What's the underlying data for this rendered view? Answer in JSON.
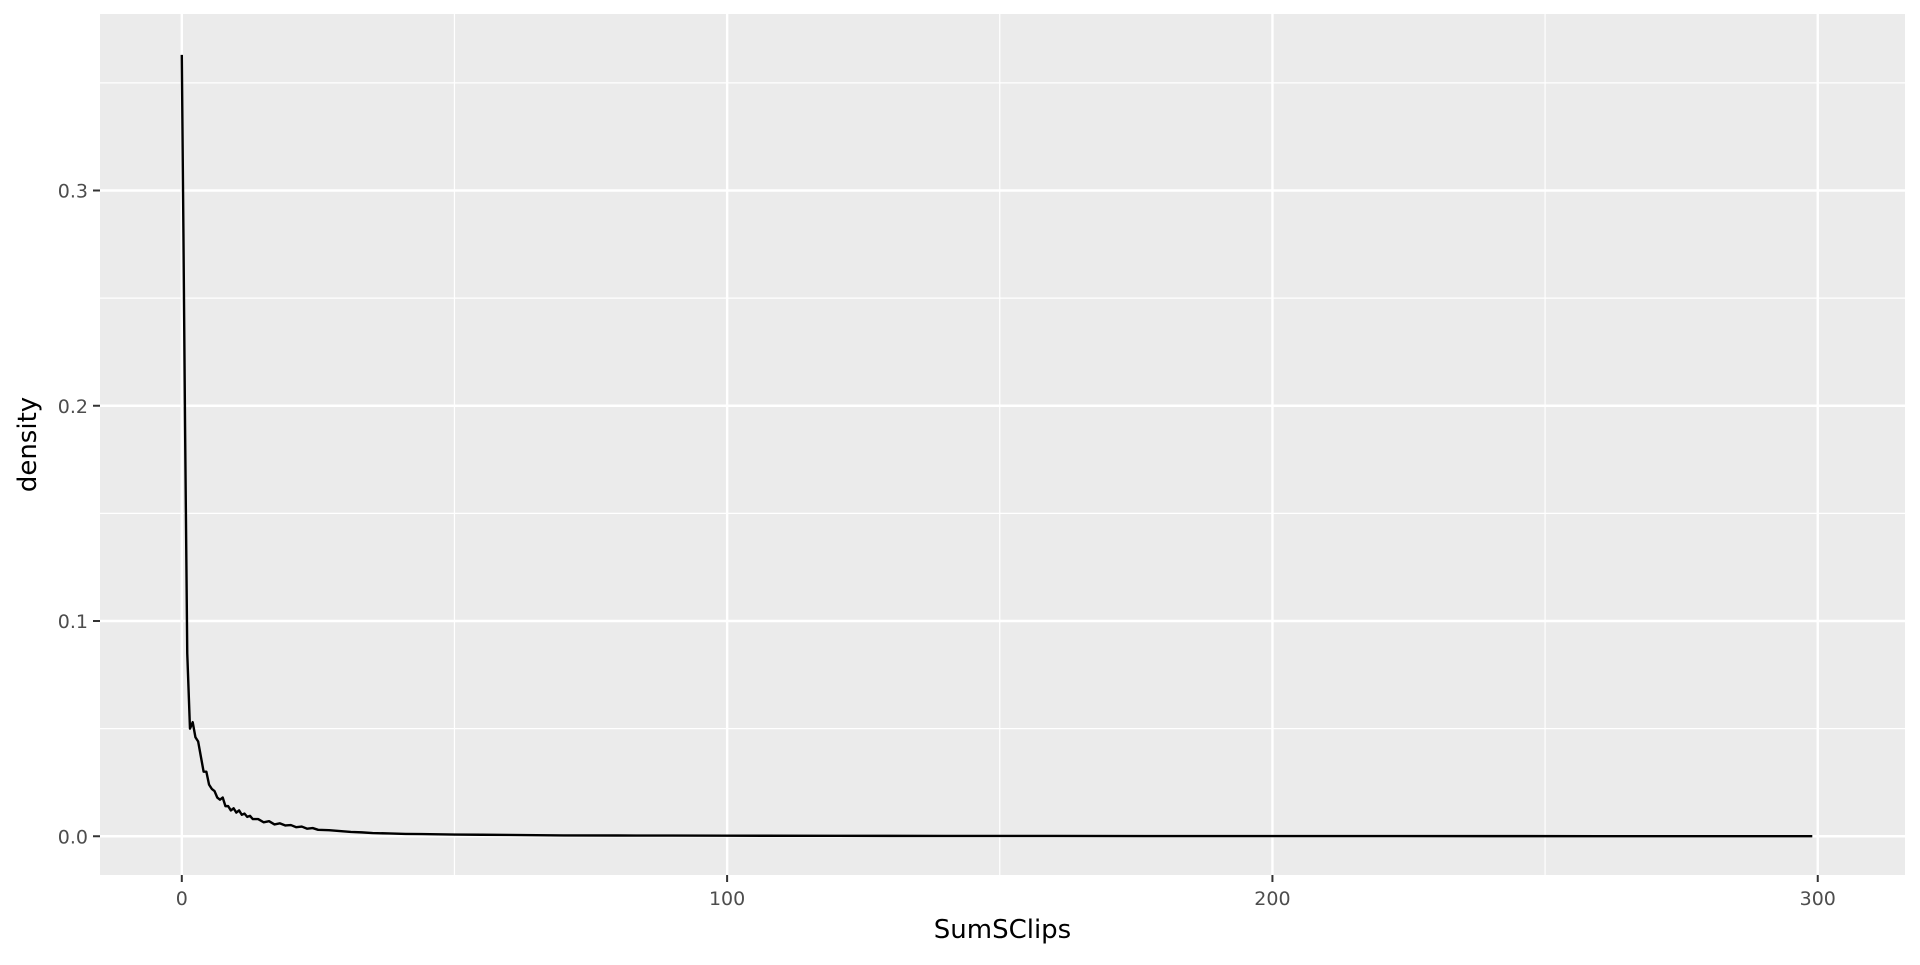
{
  "chart_data": {
    "type": "line",
    "title": "",
    "xlabel": "SumSClips",
    "ylabel": "density",
    "xlim": [
      -15,
      316
    ],
    "ylim": [
      -0.018,
      0.382
    ],
    "x_ticks": [
      0,
      100,
      200,
      300
    ],
    "x_tick_labels": [
      "0",
      "100",
      "200",
      "300"
    ],
    "y_ticks": [
      0.0,
      0.1,
      0.2,
      0.3
    ],
    "y_tick_labels": [
      "0.0",
      "0.1",
      "0.2",
      "0.3"
    ],
    "grid": true,
    "legend": "none",
    "panel_color": "#ebebeb",
    "grid_color": "#ffffff",
    "line_color": "#000000",
    "series": [
      {
        "x": [
          0,
          0.3,
          0.6,
          1,
          1.5,
          2,
          2.5,
          3,
          3.5,
          4,
          4.5,
          5,
          5.5,
          6,
          6.5,
          7,
          7.5,
          8,
          8.5,
          9,
          9.5,
          10,
          10.5,
          11,
          11.5,
          12,
          12.5,
          13,
          14,
          15,
          16,
          17,
          18,
          19,
          20,
          21,
          22,
          23,
          24,
          25,
          27,
          29,
          31,
          33,
          35,
          38,
          41,
          44,
          47,
          50,
          55,
          60,
          65,
          70,
          80,
          90,
          100,
          120,
          140,
          160,
          180,
          200,
          220,
          240,
          260,
          280,
          299
        ],
        "y": [
          0.363,
          0.28,
          0.19,
          0.085,
          0.05,
          0.053,
          0.046,
          0.044,
          0.037,
          0.03,
          0.03,
          0.024,
          0.022,
          0.021,
          0.018,
          0.017,
          0.018,
          0.014,
          0.014,
          0.012,
          0.013,
          0.011,
          0.012,
          0.01,
          0.0105,
          0.009,
          0.0095,
          0.008,
          0.008,
          0.0065,
          0.007,
          0.0055,
          0.006,
          0.005,
          0.0052,
          0.0042,
          0.0045,
          0.0035,
          0.0038,
          0.003,
          0.0028,
          0.0024,
          0.002,
          0.0018,
          0.0015,
          0.0013,
          0.0011,
          0.001,
          0.0009,
          0.0008,
          0.0007,
          0.0006,
          0.0005,
          0.0004,
          0.00035,
          0.0003,
          0.00025,
          0.0002,
          0.00016,
          0.00013,
          0.00011,
          0.0001,
          8e-05,
          6e-05,
          5e-05,
          4e-05,
          3e-05
        ]
      }
    ]
  }
}
